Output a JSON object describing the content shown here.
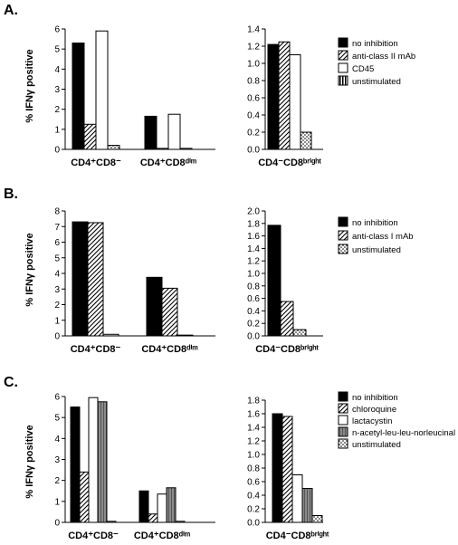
{
  "chart_data": [
    {
      "panel": "A.",
      "type": "bar",
      "ylabel": "% IFNγ positive",
      "charts": [
        {
          "ylim": [
            0,
            6
          ],
          "yticks": [
            0,
            1,
            2,
            3,
            4,
            5,
            6
          ],
          "categories": [
            "CD4⁺CD8⁻",
            "CD4⁺CD8ᵈⁱᵐ"
          ],
          "series": [
            {
              "name": "no inhibition",
              "values": [
                5.3,
                1.65
              ]
            },
            {
              "name": "anti-class II mAb",
              "values": [
                1.25,
                0.05
              ]
            },
            {
              "name": "CD45",
              "values": [
                5.9,
                1.75
              ]
            },
            {
              "name": "unstimulated",
              "values": [
                0.2,
                0.05
              ]
            }
          ]
        },
        {
          "ylim": [
            0,
            1.4
          ],
          "yticks": [
            0,
            0.2,
            0.4,
            0.6,
            0.8,
            1.0,
            1.2,
            1.4
          ],
          "categories": [
            "CD4⁻CD8ᵇʳⁱᵍʰᵗ"
          ],
          "series": [
            {
              "name": "no inhibition",
              "values": [
                1.22
              ]
            },
            {
              "name": "anti-class II mAb",
              "values": [
                1.25
              ]
            },
            {
              "name": "CD45",
              "values": [
                1.1
              ]
            },
            {
              "name": "unstimulated",
              "values": [
                0.2
              ]
            }
          ]
        }
      ]
    },
    {
      "panel": "B.",
      "type": "bar",
      "ylabel": "% IFNγ positive",
      "charts": [
        {
          "ylim": [
            0,
            8
          ],
          "yticks": [
            0,
            1,
            2,
            3,
            4,
            5,
            6,
            7,
            8
          ],
          "categories": [
            "CD4⁺CD8⁻",
            "CD4⁺CD8ᵈⁱᵐ"
          ],
          "series": [
            {
              "name": "no inhibition",
              "values": [
                7.3,
                3.75
              ]
            },
            {
              "name": "anti-class I mAb",
              "values": [
                7.25,
                3.05
              ]
            },
            {
              "name": "unstimulated",
              "values": [
                0.1,
                0.05
              ]
            }
          ]
        },
        {
          "ylim": [
            0,
            2.0
          ],
          "yticks": [
            0,
            0.2,
            0.4,
            0.6,
            0.8,
            1.0,
            1.2,
            1.4,
            1.6,
            1.8,
            2.0
          ],
          "categories": [
            "CD4⁻CD8ᵇʳⁱᵍʰᵗ"
          ],
          "series": [
            {
              "name": "no inhibition",
              "values": [
                1.77
              ]
            },
            {
              "name": "anti-class I mAb",
              "values": [
                0.55
              ]
            },
            {
              "name": "unstimulated",
              "values": [
                0.1
              ]
            }
          ]
        }
      ]
    },
    {
      "panel": "C.",
      "type": "bar",
      "ylabel": "% IFNγ positive",
      "charts": [
        {
          "ylim": [
            0,
            6
          ],
          "yticks": [
            0,
            1,
            2,
            3,
            4,
            5,
            6
          ],
          "categories": [
            "CD4⁺CD8⁻",
            "CD4⁺CD8ᵈⁱᵐ"
          ],
          "series": [
            {
              "name": "no inhibition",
              "values": [
                5.5,
                1.5
              ]
            },
            {
              "name": "chloroquine",
              "values": [
                2.4,
                0.4
              ]
            },
            {
              "name": "lactacystin",
              "values": [
                5.95,
                1.35
              ]
            },
            {
              "name": "n-acetyl-leu-leu-norleucinal",
              "values": [
                5.75,
                1.65
              ]
            },
            {
              "name": "unstimulated",
              "values": [
                0.05,
                0.05
              ]
            }
          ]
        },
        {
          "ylim": [
            0,
            1.8
          ],
          "yticks": [
            0,
            0.2,
            0.4,
            0.6,
            0.8,
            1.0,
            1.2,
            1.4,
            1.6,
            1.8
          ],
          "categories": [
            "CD4⁻CD8ᵇʳⁱᵍʰᵗ"
          ],
          "series": [
            {
              "name": "no inhibition",
              "values": [
                1.6
              ]
            },
            {
              "name": "chloroquine",
              "values": [
                1.56
              ]
            },
            {
              "name": "lactacystin",
              "values": [
                0.7
              ]
            },
            {
              "name": "n-acetyl-leu-leu-norleucinal",
              "values": [
                0.5
              ]
            },
            {
              "name": "unstimulated",
              "values": [
                0.1
              ]
            }
          ]
        }
      ]
    }
  ],
  "styles": {
    "no inhibition": "solid",
    "anti-class II mAb": "hatch",
    "anti-class I mAb": "hatch",
    "chloroquine": "hatch",
    "CD45": "white",
    "lactacystin": "white",
    "n-acetyl-leu-leu-norleucinal": "gray",
    "unstimulated": "dots"
  },
  "colors": {
    "ink": "#000000",
    "gray": "#8a8a8a",
    "paper": "#ffffff"
  }
}
